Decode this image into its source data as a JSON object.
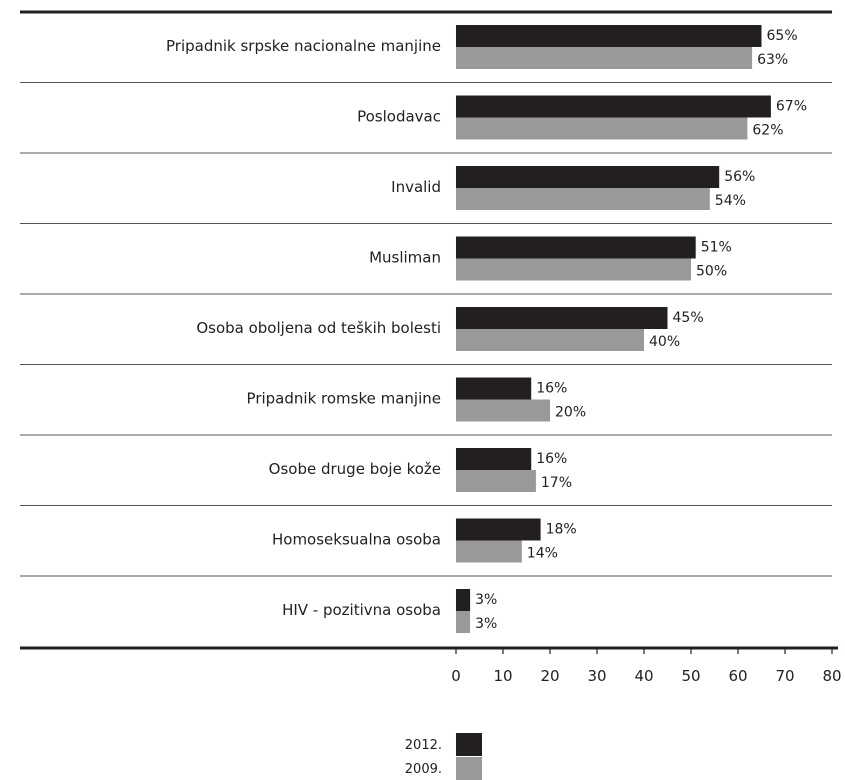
{
  "chart_data": {
    "type": "bar",
    "orientation": "horizontal",
    "title": "",
    "xlabel": "",
    "ylabel": "",
    "xlim": [
      0,
      80
    ],
    "x_ticks": [
      "0",
      "10",
      "20",
      "30",
      "40",
      "50",
      "60",
      "70",
      "80"
    ],
    "categories": [
      "Pripadnik srpske nacionalne manjine",
      "Poslodavac",
      "Invalid",
      "Musliman",
      "Osoba oboljena od teških bolesti",
      "Pripadnik romske manjine",
      "Osobe druge boje kože",
      "Homoseksualna osoba",
      "HIV - pozitivna osoba"
    ],
    "series": [
      {
        "name": "2012.",
        "color": "#231f20",
        "values": [
          65,
          67,
          56,
          51,
          45,
          16,
          16,
          18,
          3
        ],
        "labels": [
          "65%",
          "67%",
          "56%",
          "51%",
          "45%",
          "16%",
          "16%",
          "18%",
          "3%"
        ]
      },
      {
        "name": "2009.",
        "color": "#999999",
        "values": [
          63,
          62,
          54,
          50,
          40,
          20,
          17,
          14,
          3
        ],
        "labels": [
          "63%",
          "62%",
          "54%",
          "50%",
          "40%",
          "20%",
          "17%",
          "14%",
          "3%"
        ]
      }
    ],
    "legend_position": "bottom-center",
    "grid": false
  }
}
